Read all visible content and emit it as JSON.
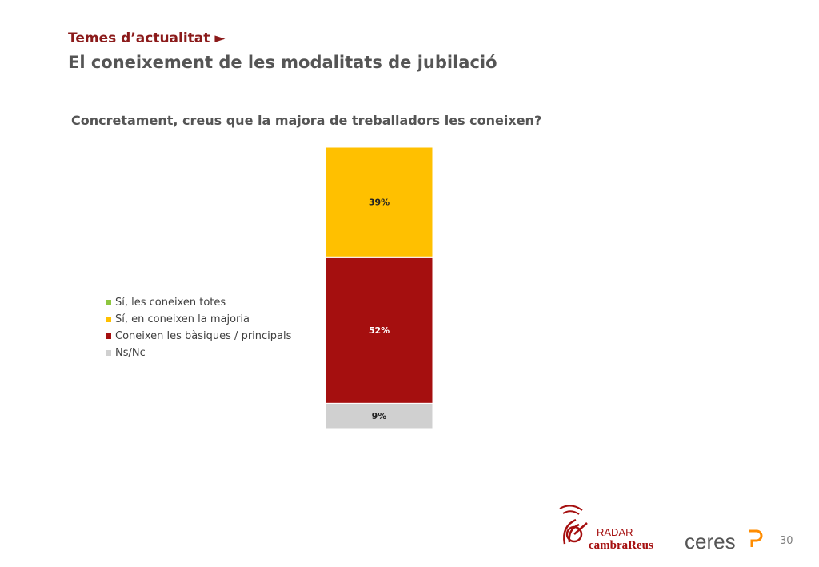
{
  "header": {
    "section": "Temes d’actualitat",
    "arrow": "►",
    "title": "El coneixement de les modalitats de jubilació"
  },
  "question": "Concretament, creus que la majora de treballadors les coneixen?",
  "chart_data": {
    "type": "bar",
    "stacked": true,
    "categories": [
      ""
    ],
    "series": [
      {
        "name": "Sí, les coneixen totes",
        "values": [
          0
        ],
        "color": "#8dc63f",
        "label": ""
      },
      {
        "name": "Sí, en coneixen la majoria",
        "values": [
          39
        ],
        "color": "#ffc000",
        "label": "39%"
      },
      {
        "name": "Coneixen les bàsiques / principals",
        "values": [
          52
        ],
        "color": "#a50f0f",
        "label": "52%"
      },
      {
        "name": "Ns/Nc",
        "values": [
          9
        ],
        "color": "#d0d0d0",
        "label": "9%"
      }
    ],
    "stack_order": "bottom-to-top: Ns/Nc, Coneixen les bàsiques / principals, Sí, en coneixen la majoria, Sí, les coneixen totes",
    "ylim": [
      0,
      100
    ],
    "legend_position": "left",
    "grid": false
  },
  "footer": {
    "page_number": "30",
    "logo_radar_top": "RADAR",
    "logo_radar_bottom": "cambraReus",
    "logo_ceres": "ceres"
  }
}
